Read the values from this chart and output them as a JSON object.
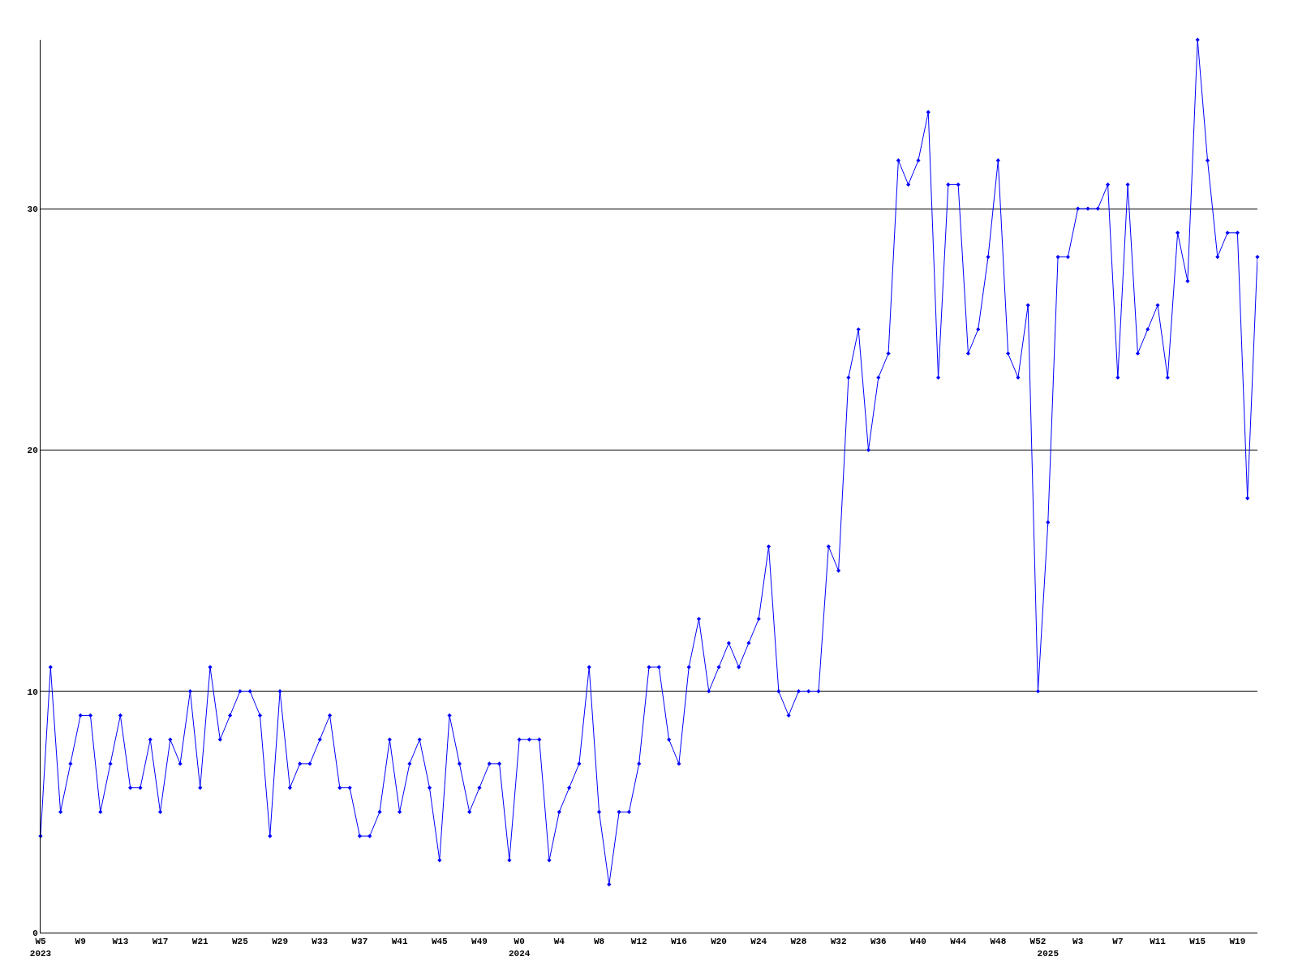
{
  "chart_data": {
    "type": "line",
    "categories": [
      "W5\n2023",
      null,
      null,
      null,
      "W9",
      null,
      null,
      null,
      "W13",
      null,
      null,
      null,
      "W17",
      null,
      null,
      null,
      "W21",
      null,
      null,
      null,
      "W25",
      null,
      null,
      null,
      "W29",
      null,
      null,
      null,
      "W33",
      null,
      null,
      null,
      "W37",
      null,
      null,
      null,
      "W41",
      null,
      null,
      null,
      "W45",
      null,
      null,
      null,
      "W49",
      null,
      null,
      null,
      "W0\n2024",
      null,
      null,
      null,
      "W4",
      null,
      null,
      null,
      "W8",
      null,
      null,
      null,
      "W12",
      null,
      null,
      null,
      "W16",
      null,
      null,
      null,
      "W20",
      null,
      null,
      null,
      "W24",
      null,
      null,
      null,
      "W28",
      null,
      null,
      null,
      "W32",
      null,
      null,
      null,
      "W36",
      null,
      null,
      null,
      "W40",
      null,
      null,
      null,
      "W44",
      null,
      null,
      null,
      "W48",
      null,
      null,
      null,
      "W52",
      "\n2025",
      null,
      null,
      "W3",
      null,
      null,
      null,
      "W7",
      null,
      null,
      null,
      "W11",
      null,
      null,
      null,
      "W15",
      null,
      null,
      null,
      "W19",
      null,
      null
    ],
    "series": [
      {
        "color": "#0000ff",
        "values": [
          4,
          11,
          5,
          7,
          9,
          9,
          5,
          7,
          9,
          6,
          6,
          8,
          5,
          8,
          7,
          10,
          6,
          11,
          8,
          9,
          10,
          10,
          9,
          4,
          10,
          6,
          7,
          7,
          8,
          9,
          6,
          6,
          4,
          4,
          5,
          8,
          5,
          7,
          8,
          6,
          3,
          9,
          7,
          5,
          6,
          7,
          7,
          3,
          8,
          8,
          8,
          3,
          5,
          6,
          7,
          11,
          5,
          2,
          5,
          5,
          7,
          11,
          11,
          8,
          7,
          11,
          13,
          10,
          11,
          12,
          11,
          12,
          13,
          16,
          10,
          9,
          10,
          10,
          10,
          16,
          15,
          23,
          25,
          20,
          23,
          24,
          32,
          31,
          32,
          34,
          23,
          31,
          31,
          24,
          25,
          28,
          32,
          24,
          23,
          26,
          10,
          17,
          28,
          28,
          30,
          30,
          30,
          31,
          23,
          31,
          24,
          25,
          26,
          23,
          29,
          27,
          37,
          32,
          28,
          29,
          29,
          18,
          28
        ]
      }
    ],
    "ylim": [
      0,
      37
    ],
    "yticks": [
      0,
      10,
      20,
      30
    ],
    "grid": "y",
    "marker": "diamond",
    "line_style": "solid"
  }
}
